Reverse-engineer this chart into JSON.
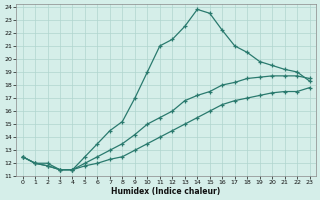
{
  "xlabel": "Humidex (Indice chaleur)",
  "xlim": [
    -0.5,
    23.5
  ],
  "ylim": [
    11,
    24.2
  ],
  "yticks": [
    11,
    12,
    13,
    14,
    15,
    16,
    17,
    18,
    19,
    20,
    21,
    22,
    23,
    24
  ],
  "xticks": [
    0,
    1,
    2,
    3,
    4,
    5,
    6,
    7,
    8,
    9,
    10,
    11,
    12,
    13,
    14,
    15,
    16,
    17,
    18,
    19,
    20,
    21,
    22,
    23
  ],
  "background_color": "#d5eee9",
  "grid_color": "#b0d5ce",
  "line_color": "#2a7a6e",
  "line_width": 0.9,
  "marker": "+",
  "marker_size": 3.5,
  "marker_lw": 0.9,
  "series_max": [
    12.5,
    12.0,
    12.0,
    11.5,
    11.5,
    12.5,
    13.5,
    14.5,
    15.2,
    17.0,
    19.0,
    21.0,
    21.5,
    22.5,
    23.8,
    23.5,
    22.2,
    21.0,
    20.5,
    19.8,
    19.5,
    19.2,
    19.0,
    18.3
  ],
  "series_mean": [
    12.5,
    12.0,
    11.8,
    11.5,
    11.5,
    12.0,
    12.5,
    13.0,
    13.5,
    14.2,
    15.0,
    15.5,
    16.0,
    16.8,
    17.2,
    17.5,
    18.0,
    18.2,
    18.5,
    18.6,
    18.7,
    18.7,
    18.7,
    18.5
  ],
  "series_min": [
    12.5,
    12.0,
    11.8,
    11.5,
    11.5,
    11.8,
    12.0,
    12.3,
    12.5,
    13.0,
    13.5,
    14.0,
    14.5,
    15.0,
    15.5,
    16.0,
    16.5,
    16.8,
    17.0,
    17.2,
    17.4,
    17.5,
    17.5,
    17.8
  ]
}
